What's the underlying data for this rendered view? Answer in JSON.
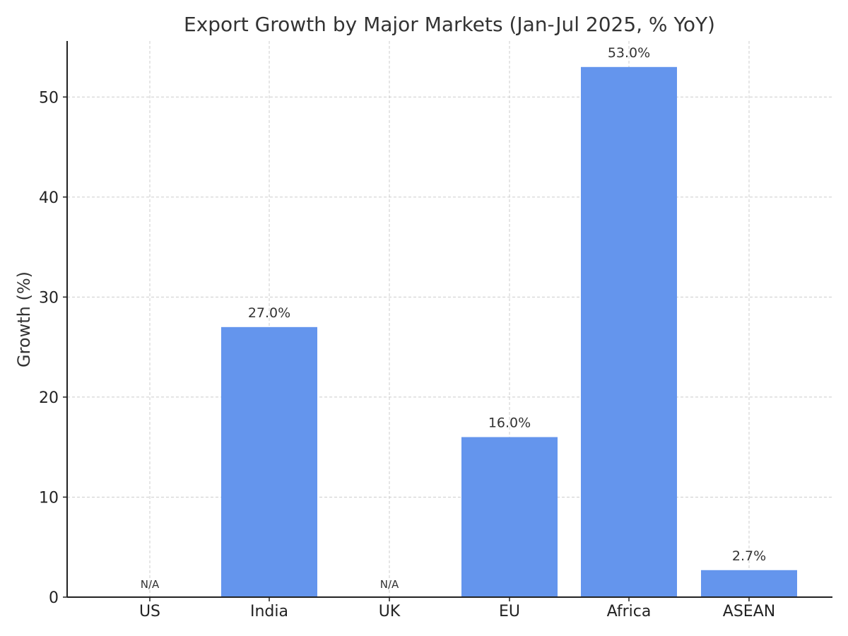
{
  "chart_data": {
    "type": "bar",
    "title": "Export Growth by Major Markets (Jan-Jul 2025, % YoY)",
    "xlabel": "",
    "ylabel": "Growth (%)",
    "categories": [
      "US",
      "India",
      "UK",
      "EU",
      "Africa",
      "ASEAN"
    ],
    "values": [
      null,
      27.0,
      null,
      16.0,
      53.0,
      2.7
    ],
    "data_labels": [
      "N/A",
      "27.0%",
      "N/A",
      "16.0%",
      "53.0%",
      "2.7%"
    ],
    "ylim": [
      0,
      55.6
    ],
    "yticks": [
      0,
      10,
      20,
      30,
      40,
      50
    ],
    "grid": true,
    "bar_color": "#6495ED",
    "grid_color": "#cccccc",
    "axis_color": "#222222"
  }
}
